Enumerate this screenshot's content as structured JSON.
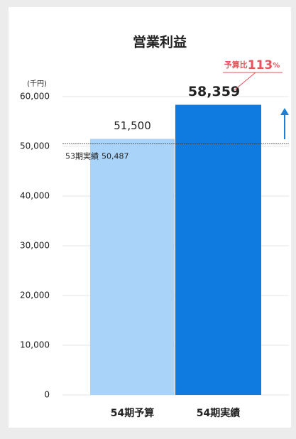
{
  "chart_data": {
    "type": "bar",
    "title": "営業利益",
    "y_unit": "(千円)",
    "categories": [
      "54期予算",
      "54期実績"
    ],
    "values": [
      51500,
      58359
    ],
    "value_labels": [
      "51,500",
      "58,359"
    ],
    "colors": [
      "#a9d3f8",
      "#0f7be0"
    ],
    "ylim": [
      0,
      60000
    ],
    "yticks": [
      0,
      {
        "value": 10000,
        "label": "10,000"
      },
      {
        "value": 20000,
        "label": "20,000"
      },
      {
        "value": 30000,
        "label": "30,000"
      },
      {
        "value": 40000,
        "label": "40,000"
      },
      {
        "value": 50000,
        "label": "50,000"
      },
      {
        "value": 60000,
        "label": "60,000"
      }
    ],
    "grid": true,
    "reference_line": {
      "label": "53期実績",
      "value": 50487,
      "value_label": "50,487"
    },
    "annotation": {
      "prefix": "予算比",
      "value": 113,
      "unit": "%",
      "color": "#e8525a"
    },
    "arrow_color": "#1a7fd6"
  }
}
